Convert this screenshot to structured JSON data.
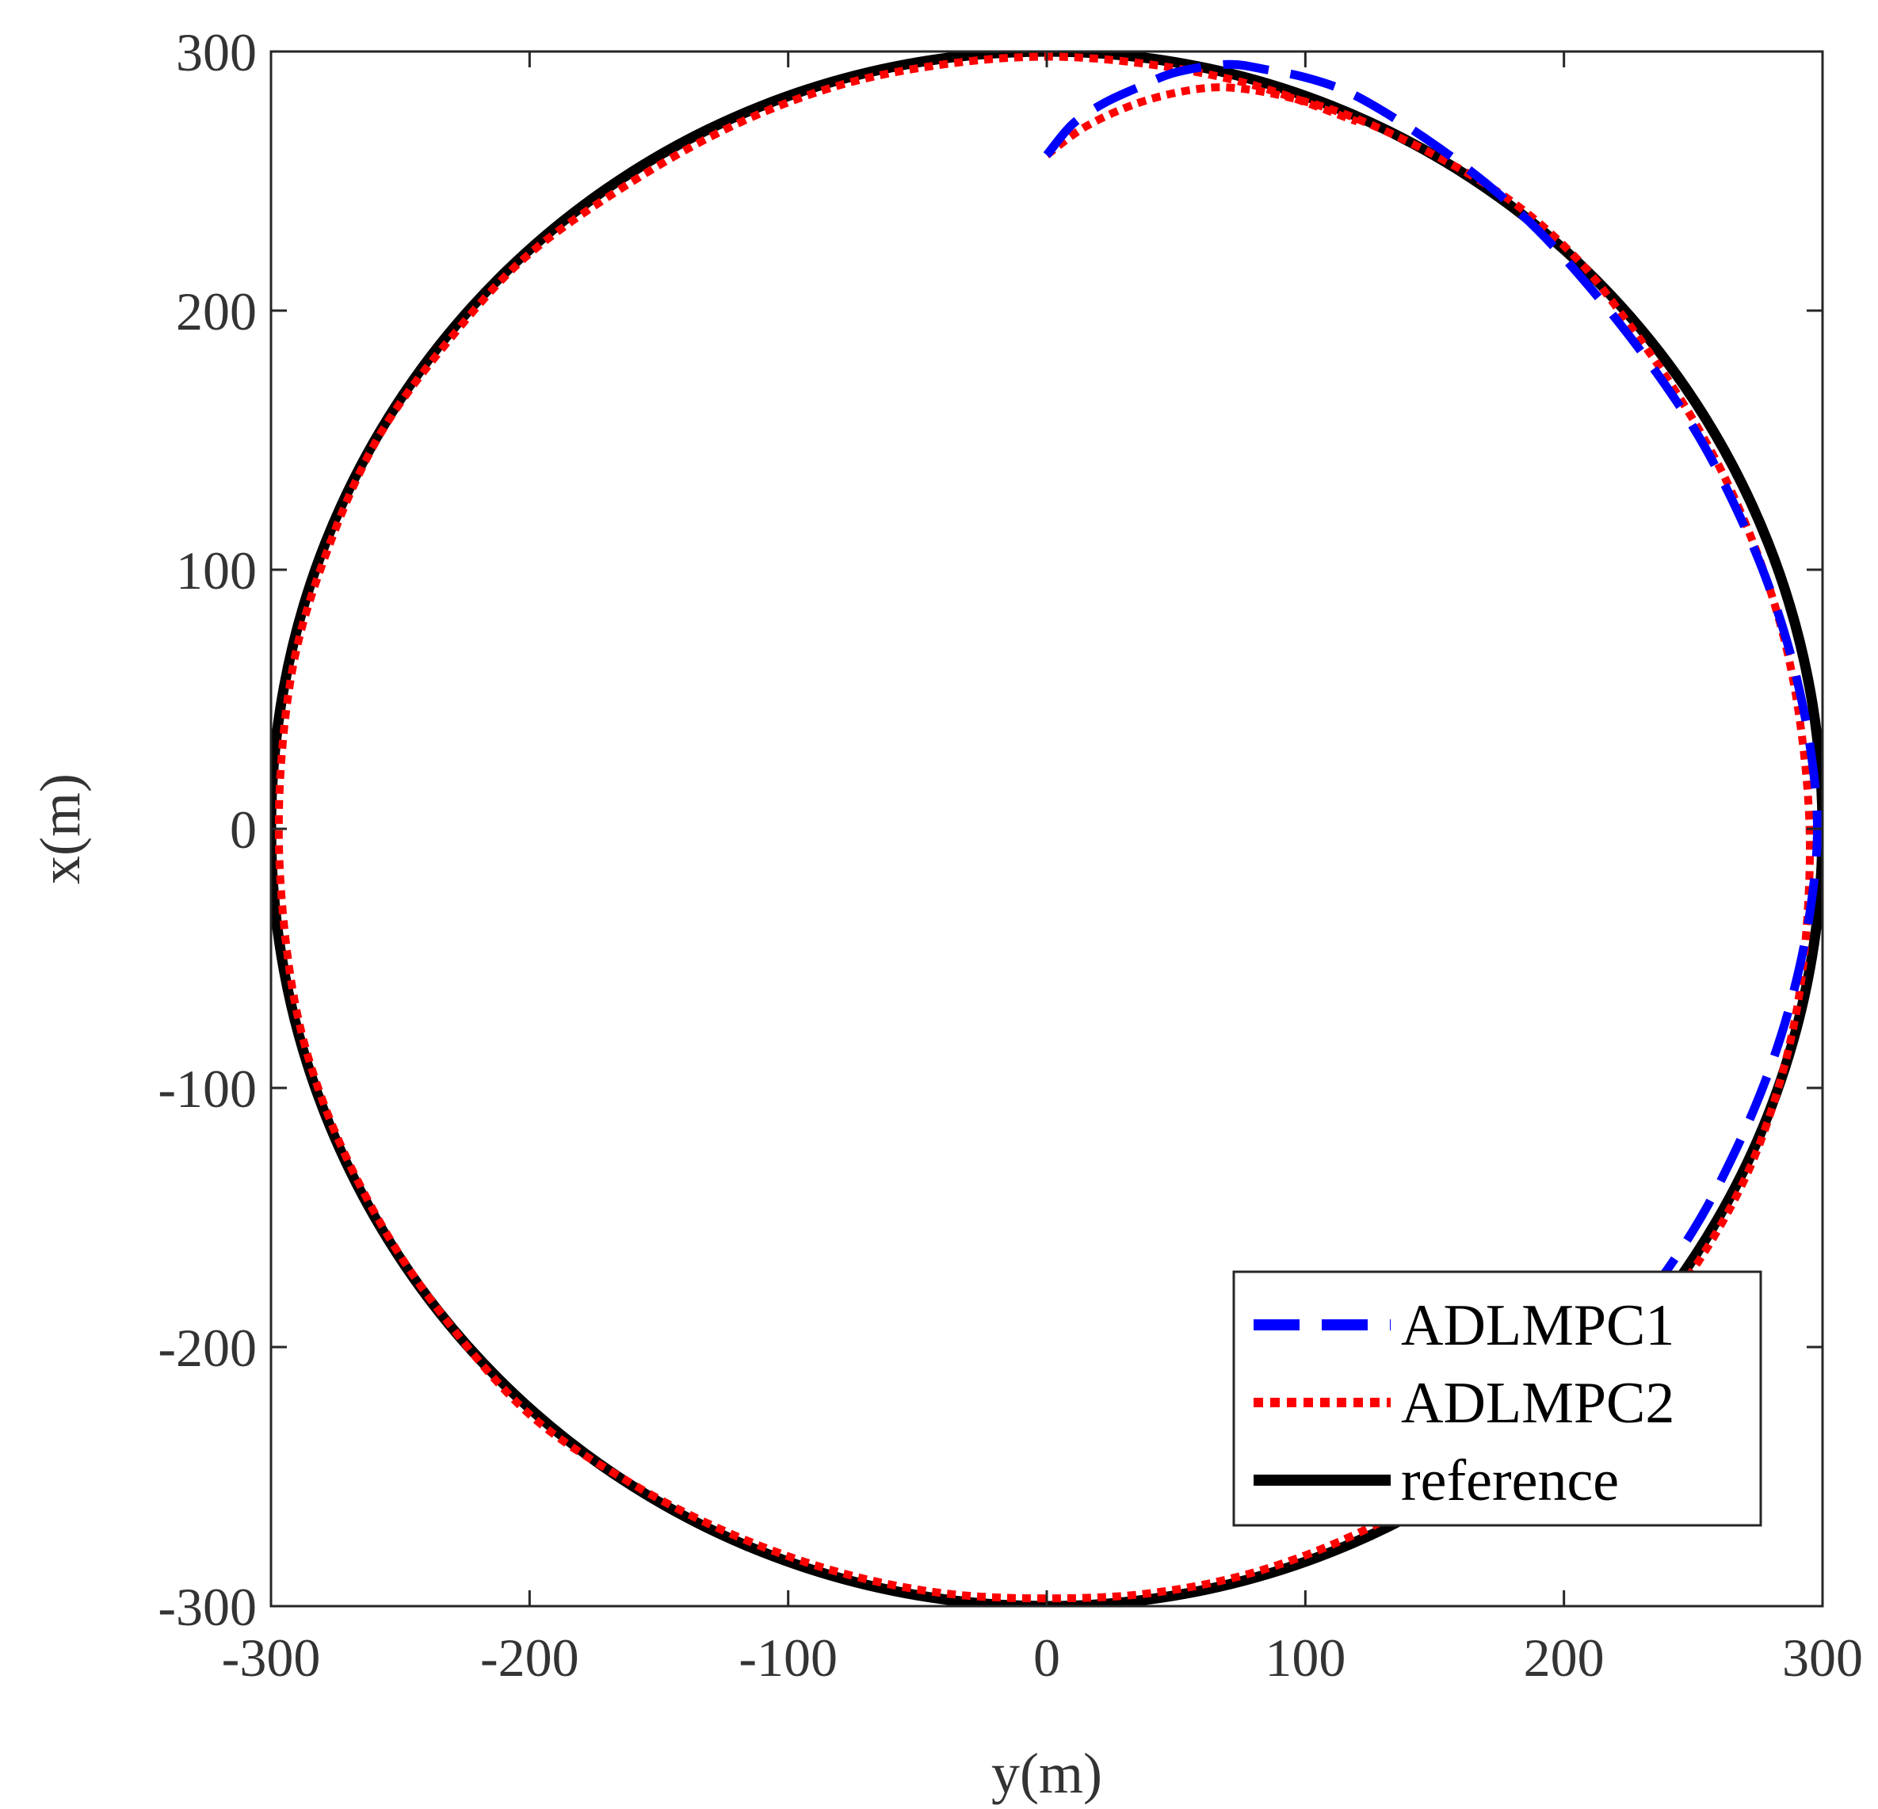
{
  "chart_data": {
    "type": "line",
    "title": "",
    "xlabel": "y(m)",
    "ylabel": "x(m)",
    "xlim": [
      -300,
      300
    ],
    "ylim": [
      -300,
      300
    ],
    "xticks": [
      -300,
      -200,
      -100,
      0,
      100,
      200,
      300
    ],
    "yticks": [
      -300,
      -200,
      -100,
      0,
      100,
      200,
      300
    ],
    "xtick_labels": [
      "-300",
      "-200",
      "-100",
      "0",
      "100",
      "200",
      "300"
    ],
    "ytick_labels": [
      "-300",
      "-200",
      "-100",
      "0",
      "100",
      "200",
      "300"
    ],
    "grid": false,
    "legend_position": "bottom-right",
    "series": [
      {
        "name": "ADLMPC1",
        "color": "#0000ff",
        "style": "dashed",
        "points": [
          [
            0,
            260
          ],
          [
            10,
            272
          ],
          [
            22,
            280
          ],
          [
            35,
            286
          ],
          [
            50,
            292
          ],
          [
            70,
            295
          ],
          [
            85,
            293
          ],
          [
            100,
            290
          ],
          [
            115,
            285
          ],
          [
            130,
            277
          ],
          [
            150,
            264
          ],
          [
            170,
            249
          ],
          [
            190,
            231
          ],
          [
            210,
            209
          ],
          [
            230,
            184
          ],
          [
            250,
            155
          ],
          [
            265,
            127
          ],
          [
            278,
            97
          ],
          [
            288,
            66
          ],
          [
            295,
            33
          ],
          [
            298,
            0
          ],
          [
            295,
            -33
          ],
          [
            288,
            -66
          ],
          [
            278,
            -97
          ],
          [
            265,
            -127
          ],
          [
            250,
            -155
          ],
          [
            230,
            -184
          ],
          [
            212,
            -207
          ]
        ]
      },
      {
        "name": "ADLMPC2",
        "color": "#ff0000",
        "style": "dotted",
        "points": [
          [
            0,
            260
          ],
          [
            15,
            271
          ],
          [
            35,
            280
          ],
          [
            55,
            285
          ],
          [
            72,
            286
          ],
          [
            95,
            282
          ],
          [
            120,
            274
          ],
          [
            150,
            260
          ],
          [
            180,
            242
          ],
          [
            205,
            220
          ],
          [
            225,
            195
          ],
          [
            245,
            166
          ],
          [
            262,
            136
          ],
          [
            276,
            103
          ],
          [
            286,
            70
          ],
          [
            292,
            36
          ],
          [
            295,
            0
          ],
          [
            294,
            -36
          ],
          [
            290,
            -70
          ],
          [
            282,
            -103
          ],
          [
            270,
            -135
          ],
          [
            252,
            -167
          ],
          [
            230,
            -196
          ],
          [
            200,
            -223
          ],
          [
            160,
            -250
          ],
          [
            120,
            -272
          ],
          [
            80,
            -287
          ],
          [
            40,
            -295
          ],
          [
            0,
            -297
          ],
          [
            -40,
            -295
          ],
          [
            -80,
            -287
          ],
          [
            -120,
            -273
          ],
          [
            -160,
            -253
          ],
          [
            -200,
            -226
          ],
          [
            -235,
            -186
          ],
          [
            -260,
            -148
          ],
          [
            -280,
            -105
          ],
          [
            -292,
            -60
          ],
          [
            -297,
            0
          ],
          [
            -292,
            60
          ],
          [
            -278,
            108
          ],
          [
            -258,
            152
          ],
          [
            -230,
            190
          ],
          [
            -200,
            222
          ],
          [
            -160,
            250
          ],
          [
            -120,
            272
          ],
          [
            -80,
            287
          ],
          [
            -40,
            295
          ],
          [
            0,
            298
          ],
          [
            40,
            295
          ],
          [
            80,
            287
          ],
          [
            120,
            273
          ]
        ]
      },
      {
        "name": "reference",
        "color": "#000000",
        "style": "solid",
        "shape": "circle",
        "center": [
          0,
          0
        ],
        "radius": 300
      }
    ]
  }
}
